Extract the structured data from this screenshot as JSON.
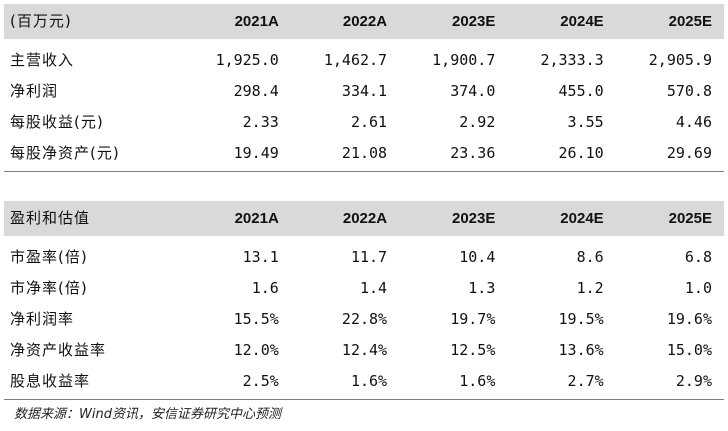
{
  "table1": {
    "header": [
      "(百万元)",
      "2021A",
      "2022A",
      "2023E",
      "2024E",
      "2025E"
    ],
    "rows": [
      {
        "label": "主营收入",
        "values": [
          "1,925.0",
          "1,462.7",
          "1,900.7",
          "2,333.3",
          "2,905.9"
        ]
      },
      {
        "label": "净利润",
        "values": [
          "298.4",
          "334.1",
          "374.0",
          "455.0",
          "570.8"
        ]
      },
      {
        "label": "每股收益(元)",
        "values": [
          "2.33",
          "2.61",
          "2.92",
          "3.55",
          "4.46"
        ]
      },
      {
        "label": "每股净资产(元)",
        "values": [
          "19.49",
          "21.08",
          "23.36",
          "26.10",
          "29.69"
        ]
      }
    ]
  },
  "table2": {
    "header": [
      "盈利和估值",
      "2021A",
      "2022A",
      "2023E",
      "2024E",
      "2025E"
    ],
    "rows": [
      {
        "label": "市盈率(倍)",
        "values": [
          "13.1",
          "11.7",
          "10.4",
          "8.6",
          "6.8"
        ]
      },
      {
        "label": "市净率(倍)",
        "values": [
          "1.6",
          "1.4",
          "1.3",
          "1.2",
          "1.0"
        ]
      },
      {
        "label": "净利润率",
        "values": [
          "15.5%",
          "22.8%",
          "19.7%",
          "19.5%",
          "19.6%"
        ]
      },
      {
        "label": "净资产收益率",
        "values": [
          "12.0%",
          "12.4%",
          "12.5%",
          "13.6%",
          "15.0%"
        ]
      },
      {
        "label": "股息收益率",
        "values": [
          "2.5%",
          "1.6%",
          "1.6%",
          "2.7%",
          "2.9%"
        ]
      }
    ]
  },
  "source": "数据来源：Wind资讯，安信证券研究中心预测"
}
